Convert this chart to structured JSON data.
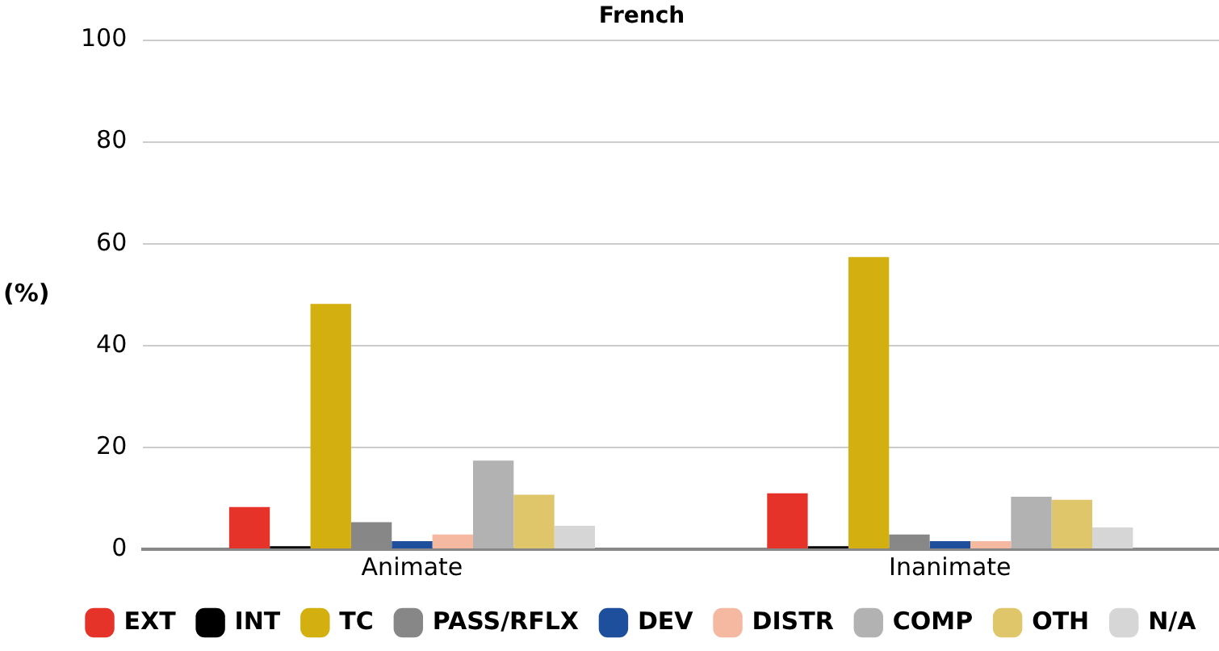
{
  "chart_data": {
    "type": "bar",
    "title": "French",
    "ylabel": "(%)",
    "categories": [
      "Animate",
      "Inanimate"
    ],
    "ylim": [
      0,
      100
    ],
    "yticks": [
      0,
      20,
      40,
      60,
      80,
      100
    ],
    "grid": "y",
    "legend": "bottom",
    "series": [
      {
        "name": "EXT",
        "color": "#e5332a",
        "values": [
          8.3,
          11.0
        ]
      },
      {
        "name": "INT",
        "color": "#000000",
        "values": [
          0.6,
          0.6
        ]
      },
      {
        "name": "TC",
        "color": "#d4af10",
        "values": [
          48.2,
          57.4
        ]
      },
      {
        "name": "PASS/RFLX",
        "color": "#878787",
        "values": [
          5.3,
          2.9
        ]
      },
      {
        "name": "DEV",
        "color": "#1d4f9c",
        "values": [
          1.6,
          1.6
        ]
      },
      {
        "name": "DISTR",
        "color": "#f5b8a0",
        "values": [
          2.9,
          1.6
        ]
      },
      {
        "name": "COMP",
        "color": "#b2b2b2",
        "values": [
          17.4,
          10.3
        ]
      },
      {
        "name": "OTH",
        "color": "#e0c66a",
        "values": [
          10.7,
          9.7
        ]
      },
      {
        "name": "N/A",
        "color": "#d6d6d6",
        "values": [
          4.6,
          4.3
        ]
      }
    ]
  }
}
